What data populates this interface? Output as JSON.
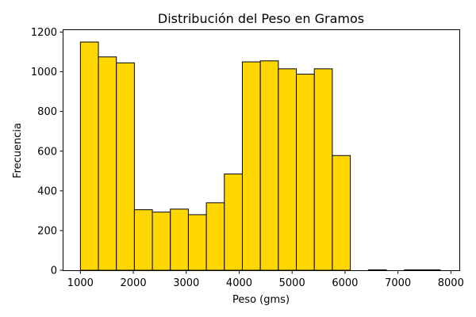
{
  "chart_data": {
    "type": "bar",
    "title": "Distribución del Peso en Gramos",
    "xlabel": "Peso (gms)",
    "ylabel": "Frecuencia",
    "xlim": [
      680,
      8160
    ],
    "ylim": [
      0,
      1210
    ],
    "xticks": [
      1000,
      2000,
      3000,
      4000,
      5000,
      6000,
      7000,
      8000
    ],
    "yticks": [
      0,
      200,
      400,
      600,
      800,
      1000,
      1200
    ],
    "bar_color": "#FFD700",
    "edge_color": "#000000",
    "grid": false,
    "bins": [
      {
        "x0": 1000,
        "x1": 1340,
        "value": 1150
      },
      {
        "x0": 1340,
        "x1": 1680,
        "value": 1075
      },
      {
        "x0": 1680,
        "x1": 2020,
        "value": 1045
      },
      {
        "x0": 2020,
        "x1": 2360,
        "value": 305
      },
      {
        "x0": 2360,
        "x1": 2700,
        "value": 293
      },
      {
        "x0": 2700,
        "x1": 3040,
        "value": 308
      },
      {
        "x0": 3040,
        "x1": 3380,
        "value": 280
      },
      {
        "x0": 3380,
        "x1": 3720,
        "value": 340
      },
      {
        "x0": 3720,
        "x1": 4060,
        "value": 485
      },
      {
        "x0": 4060,
        "x1": 4400,
        "value": 1050
      },
      {
        "x0": 4400,
        "x1": 4740,
        "value": 1055
      },
      {
        "x0": 4740,
        "x1": 5080,
        "value": 1015
      },
      {
        "x0": 5080,
        "x1": 5420,
        "value": 988
      },
      {
        "x0": 5420,
        "x1": 5760,
        "value": 1015
      },
      {
        "x0": 5760,
        "x1": 6100,
        "value": 578
      },
      {
        "x0": 6100,
        "x1": 6440,
        "value": 0
      },
      {
        "x0": 6440,
        "x1": 6780,
        "value": 2
      },
      {
        "x0": 6780,
        "x1": 7120,
        "value": 0
      },
      {
        "x0": 7120,
        "x1": 7460,
        "value": 2
      },
      {
        "x0": 7460,
        "x1": 7800,
        "value": 2
      }
    ]
  }
}
